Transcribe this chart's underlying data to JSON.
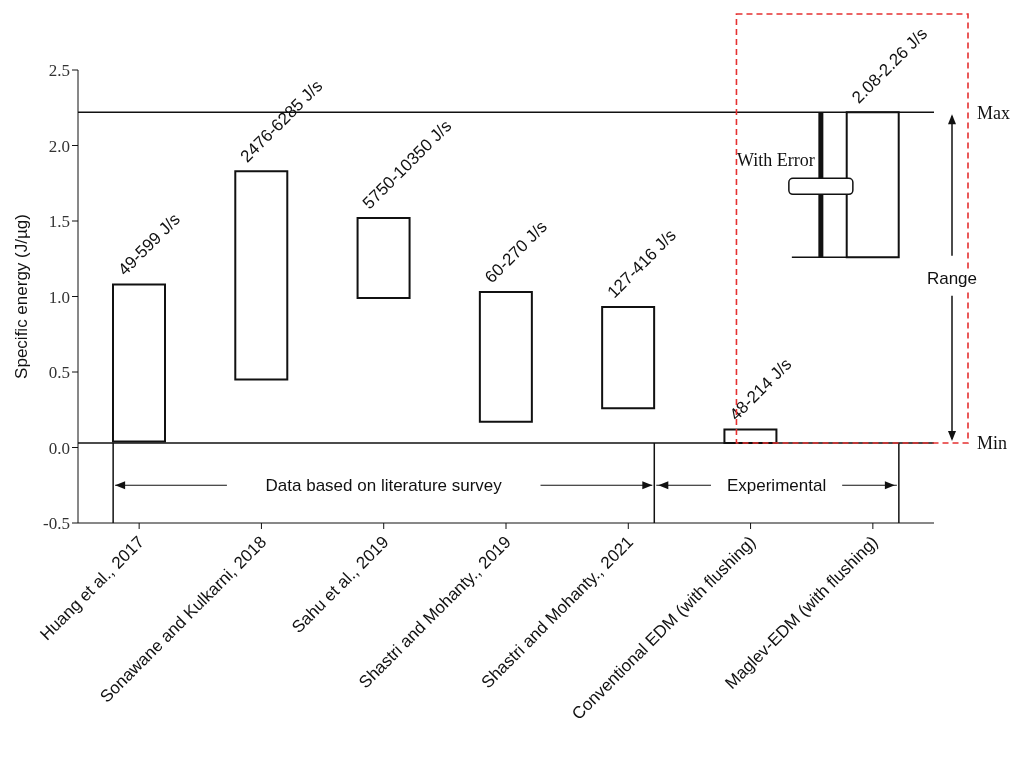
{
  "chart_data": {
    "type": "bar",
    "ylabel": "Specific energy (J/µg)",
    "categories": [
      "Huang et al., 2017",
      "Sonawane and Kulkarni, 2018",
      "Sahu et al., 2019",
      "Shastri and Mohanty., 2019",
      "Shastri and Mohanty., 2021",
      "Conventional EDM (with flushing)",
      "Maglev-EDM (with flushing)"
    ],
    "base": [
      0.04,
      0.45,
      0.99,
      0.17,
      0.26,
      0.03,
      1.26
    ],
    "values": [
      1.04,
      1.38,
      0.53,
      0.86,
      0.67,
      0.09,
      0.96
    ],
    "value_labels": [
      "49-599 J/s",
      "2476-6285 J/s",
      "5750-10350 J/s",
      "60-270 J/s",
      "127-416 J/s",
      "48-214 J/s",
      "2.08-2.26 J/s"
    ],
    "color": "#ffffff",
    "ylim": [
      -0.5,
      2.5
    ],
    "yticks": [
      -0.5,
      {
        "value": 0,
        "label": "0.0"
      },
      0.5,
      {
        "value": 1,
        "label": "1.0"
      },
      1.5,
      {
        "value": 2,
        "label": "2.0"
      },
      2.5
    ],
    "ref_lines": [
      {
        "axis": "y",
        "value": 2.22,
        "label": "Max"
      },
      {
        "axis": "y",
        "value": 0.03,
        "label": "Min"
      }
    ],
    "annotations": [
      "Data based on literature survey",
      "Experimental",
      "With Error",
      "Range"
    ]
  }
}
